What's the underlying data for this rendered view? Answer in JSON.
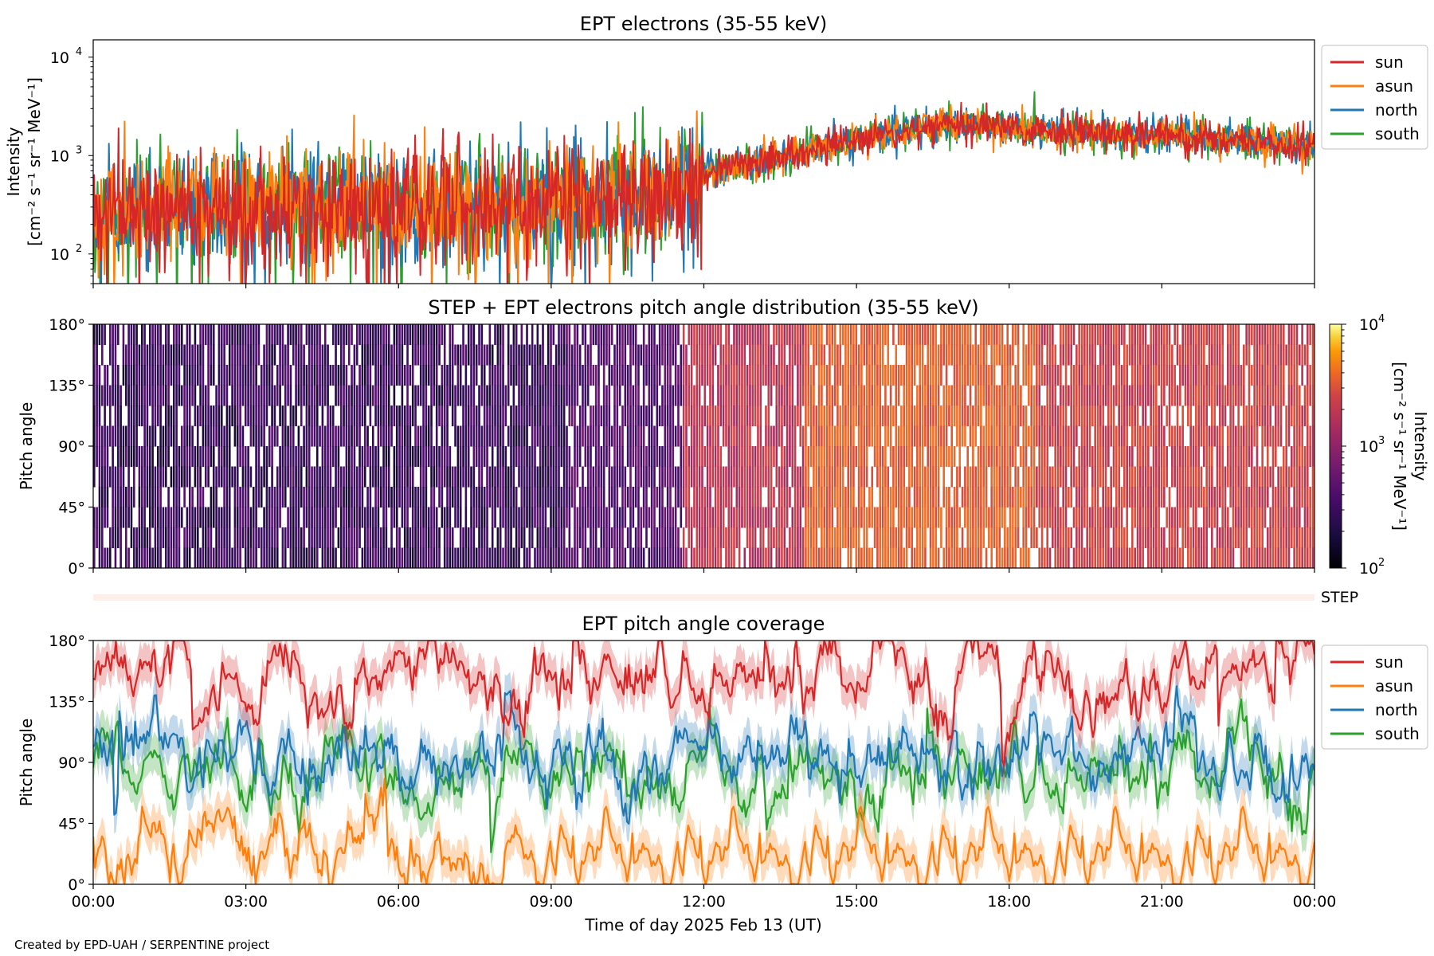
{
  "credit": "Created by EPD-UAH / SERPENTINE project",
  "colors": {
    "sun": "#d62728",
    "asun": "#ff7f0e",
    "north": "#1f77b4",
    "south": "#2ca02c"
  },
  "x_axis": {
    "label": "Time of day 2025 Feb 13 (UT)",
    "ticks": [
      "00:00",
      "03:00",
      "06:00",
      "09:00",
      "12:00",
      "15:00",
      "18:00",
      "21:00",
      "00:00"
    ],
    "range_hours": [
      0,
      24
    ]
  },
  "chart_data": [
    {
      "type": "line",
      "title": "EPT electrons (35-55 keV)",
      "ylabel_line1": "Intensity",
      "ylabel_line2": "[cm⁻² s⁻¹ sr⁻¹ MeV⁻¹]",
      "yscale": "log",
      "ylim": [
        50,
        15000
      ],
      "yticks": [
        {
          "value": 100,
          "base": "10",
          "exp": "2"
        },
        {
          "value": 1000,
          "base": "10",
          "exp": "3"
        },
        {
          "value": 10000,
          "base": "10",
          "exp": "4"
        }
      ],
      "legend": [
        "sun",
        "asun",
        "north",
        "south"
      ],
      "legend_position": "outside-right",
      "series_trend_hours": [
        0,
        2,
        4,
        6,
        8,
        9.5,
        10.5,
        11.5,
        12,
        13,
        14,
        15,
        16,
        16.8,
        17.5,
        18,
        19,
        20,
        21,
        22,
        23,
        24
      ],
      "series_trend_values": [
        300,
        310,
        320,
        330,
        340,
        350,
        380,
        450,
        650,
        850,
        1100,
        1450,
        1800,
        2100,
        2050,
        1900,
        1750,
        1650,
        1600,
        1500,
        1350,
        1250
      ]
    },
    {
      "type": "heatmap",
      "title": "STEP + EPT electrons pitch angle distribution (35-55 keV)",
      "ylabel": "Pitch angle",
      "ylim": [
        0,
        180
      ],
      "yticks": [
        "0°",
        "45°",
        "90°",
        "135°",
        "180°"
      ],
      "colorbar": {
        "label_line1": "Intensity",
        "label_line2": "[cm⁻² s⁻¹ sr⁻¹ MeV⁻¹]",
        "scale": "log",
        "range": [
          100,
          10000
        ],
        "colormap": "inferno",
        "ticks": [
          {
            "value": 100,
            "base": "10",
            "exp": "2"
          },
          {
            "value": 1000,
            "base": "10",
            "exp": "3"
          },
          {
            "value": 10000,
            "base": "10",
            "exp": "4"
          }
        ]
      },
      "step_label": "STEP"
    },
    {
      "type": "line",
      "title": "EPT pitch angle coverage",
      "ylabel": "Pitch angle",
      "ylim": [
        0,
        180
      ],
      "yticks": [
        "0°",
        "45°",
        "90°",
        "135°",
        "180°"
      ],
      "legend": [
        "sun",
        "asun",
        "north",
        "south"
      ],
      "legend_position": "outside-right",
      "series_means_deg": {
        "sun": 150,
        "asun": 30,
        "north": 95,
        "south": 80
      }
    }
  ]
}
